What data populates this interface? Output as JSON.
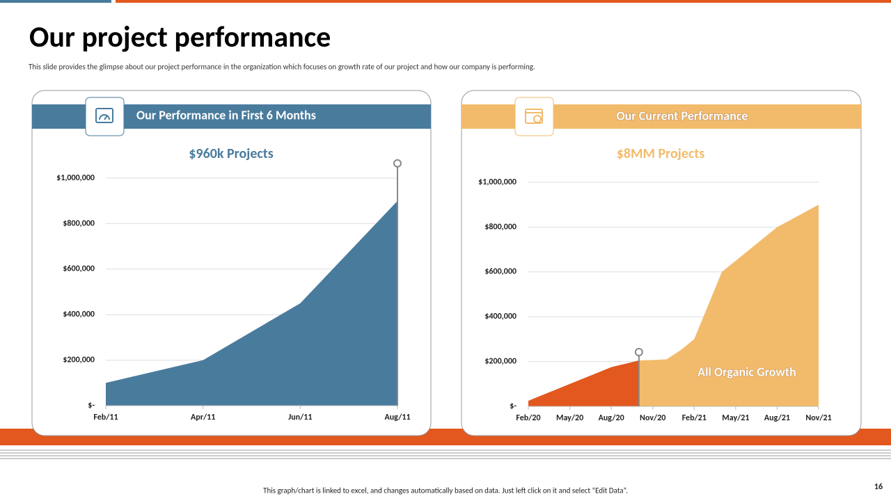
{
  "title": "Our project performance",
  "subtitle": "This slide provides the glimpse about our project performance in the  organization which focuses on growth rate of our project and how our company is performing.",
  "footer": "This graph/chart is linked to excel, and changes automatically based on data. Just left click on it and select “Edit Data”.",
  "page_number": "16",
  "chart_data": [
    {
      "type": "area",
      "header": "Our Performance in First 6 Months",
      "title": "$960k Projects",
      "categories": [
        "Feb/11",
        "Apr/11",
        "Jun/11",
        "Aug/11"
      ],
      "series": [
        {
          "color": "#497b9d",
          "values": [
            100000,
            200000,
            450000,
            900000
          ]
        }
      ],
      "ylim": [
        0,
        1000000
      ],
      "yticks": [
        {
          "value": 0,
          "label": "$-"
        },
        {
          "value": 200000,
          "label": "$200,000"
        },
        {
          "value": 400000,
          "label": "$400,000"
        },
        {
          "value": 600000,
          "label": "$600,000"
        },
        {
          "value": 800000,
          "label": "$800,000"
        },
        {
          "value": 1000000,
          "label": "$1,000,000"
        }
      ],
      "grid": true
    },
    {
      "type": "area",
      "header": "Our Current Performance",
      "title": "$8MM Projects",
      "annotation": "All Organic Growth",
      "categories": [
        "Feb/20",
        null,
        null,
        "May/20",
        null,
        null,
        "Aug/20",
        null,
        null,
        "Nov/20",
        null,
        null,
        "Feb/21",
        null,
        null,
        "May/21",
        null,
        null,
        "Aug/21",
        null,
        null,
        "Nov/21"
      ],
      "series": [
        {
          "color": "#e2581e",
          "values": [
            25000,
            50000,
            75000,
            100000,
            125000,
            150000,
            175000,
            190000,
            205000,
            null,
            null,
            null,
            null,
            null,
            null,
            null,
            null,
            null,
            null,
            null,
            null,
            null
          ]
        },
        {
          "color": "#f2bb6b",
          "values": [
            null,
            null,
            null,
            null,
            null,
            null,
            null,
            null,
            205000,
            207000,
            210000,
            250000,
            300000,
            450000,
            600000,
            650000,
            700000,
            750000,
            800000,
            833000,
            867000,
            900000
          ]
        }
      ],
      "ylim": [
        0,
        1000000
      ],
      "yticks": [
        {
          "value": 0,
          "label": "$-"
        },
        {
          "value": 200000,
          "label": "$200,000"
        },
        {
          "value": 400000,
          "label": "$400,000"
        },
        {
          "value": 600000,
          "label": "$600,000"
        },
        {
          "value": 800000,
          "label": "$800,000"
        },
        {
          "value": 1000000,
          "label": "$1,000,000"
        }
      ],
      "grid": true
    }
  ]
}
